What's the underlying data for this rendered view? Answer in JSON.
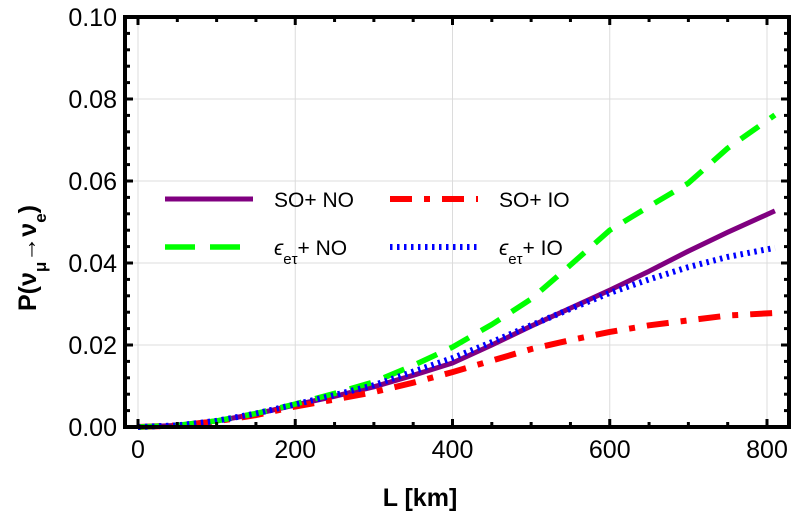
{
  "chart_data": {
    "type": "line",
    "title": "",
    "xlabel": "L [km]",
    "ylabel": "P(ν_μ→ν_e)",
    "xlim": [
      -10,
      830
    ],
    "ylim": [
      0.0,
      0.1
    ],
    "x_ticks": [
      0,
      200,
      400,
      600,
      800
    ],
    "x_tick_labels": [
      "0",
      "200",
      "400",
      "600",
      "800"
    ],
    "y_ticks": [
      0.0,
      0.02,
      0.04,
      0.06,
      0.08,
      0.1
    ],
    "y_tick_labels": [
      "0.00",
      "0.02",
      "0.04",
      "0.06",
      "0.08",
      "0.10"
    ],
    "grid": true,
    "legend_position": "upper-left inside, two columns",
    "x": [
      0,
      50,
      100,
      150,
      200,
      250,
      300,
      350,
      400,
      450,
      500,
      550,
      600,
      650,
      700,
      750,
      810
    ],
    "series": [
      {
        "name": "SO+ NO",
        "label_prefix": "SO",
        "label_suffix": "+ NO",
        "color": "#800080",
        "style": "solid",
        "values": [
          0,
          0.0004,
          0.0015,
          0.0032,
          0.0054,
          0.0075,
          0.0098,
          0.0126,
          0.0156,
          0.02,
          0.0246,
          0.029,
          0.0334,
          0.038,
          0.0429,
          0.0475,
          0.0527
        ]
      },
      {
        "name": "SO+ IO",
        "label_prefix": "SO",
        "label_suffix": "+ IO",
        "color": "#ff0000",
        "style": "dashdot",
        "values": [
          0,
          0.0004,
          0.0014,
          0.0029,
          0.005,
          0.0067,
          0.0085,
          0.0108,
          0.0134,
          0.0162,
          0.019,
          0.0212,
          0.0232,
          0.0248,
          0.026,
          0.0272,
          0.0278
        ]
      },
      {
        "name": "ϵ_eτ+ NO",
        "label_prefix": "ϵ",
        "label_sub": "eτ",
        "label_suffix": "+ NO",
        "color": "#00ff00",
        "style": "dashed",
        "values": [
          0,
          0.0004,
          0.0015,
          0.0033,
          0.0056,
          0.0082,
          0.011,
          0.015,
          0.0195,
          0.025,
          0.0312,
          0.0395,
          0.048,
          0.0538,
          0.0595,
          0.068,
          0.0761
        ]
      },
      {
        "name": "ϵ_eτ+ IO",
        "label_prefix": "ϵ",
        "label_sub": "eτ",
        "label_suffix": "+ IO",
        "color": "#0000ff",
        "style": "dotted",
        "values": [
          0,
          0.0004,
          0.0015,
          0.0033,
          0.0055,
          0.0078,
          0.0102,
          0.0135,
          0.0168,
          0.0207,
          0.0248,
          0.0288,
          0.0327,
          0.036,
          0.039,
          0.0415,
          0.0437
        ]
      }
    ]
  }
}
